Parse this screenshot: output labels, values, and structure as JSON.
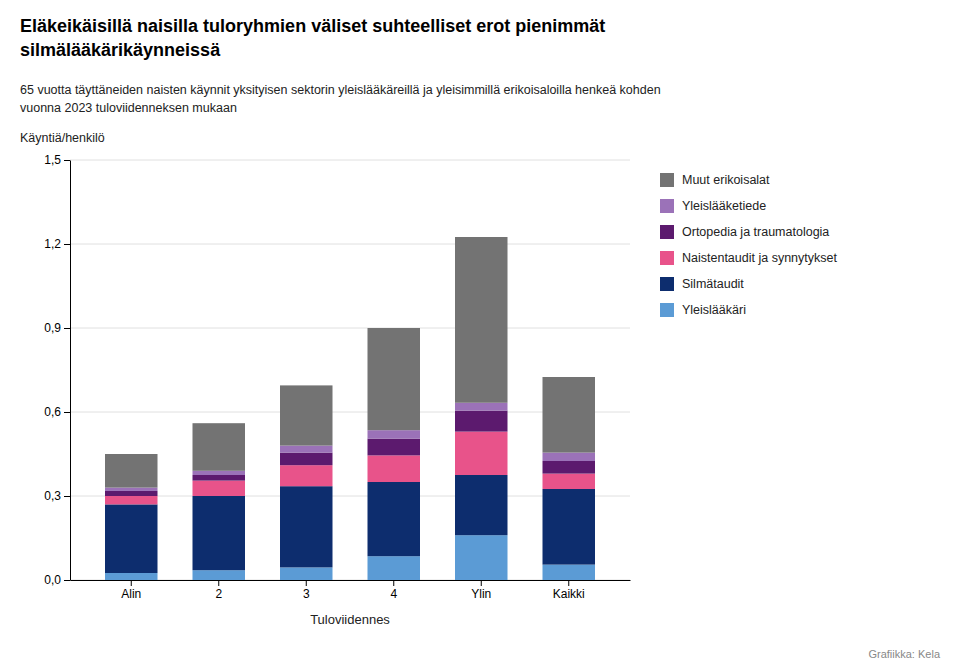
{
  "chart_data": {
    "type": "bar",
    "stacked": true,
    "title": "Eläkeikäisillä naisilla tuloryhmien väliset suhteelliset erot pienimmät\nsilmälääkärikäynneissä",
    "subtitle": "65 vuotta täyttäneiden naisten käynnit yksityisen sektorin yleislääkäreillä ja yleisimmillä erikoisaloilla henkeä kohden\nvuonna 2023 tuloviidenneksen mukaan",
    "footer": "Grafiikka: Kela",
    "xlabel": "Tuloviidennes",
    "ylabel": "Käyntiä/henkilö",
    "categories": [
      "Alin",
      "2",
      "3",
      "4",
      "Ylin",
      "Kaikki"
    ],
    "series": [
      {
        "name": "Yleislääkäri",
        "color": "#5b9bd5",
        "values": [
          0.025,
          0.035,
          0.045,
          0.085,
          0.16,
          0.055
        ]
      },
      {
        "name": "Silmätaudit",
        "color": "#0d2d6e",
        "values": [
          0.245,
          0.265,
          0.29,
          0.265,
          0.215,
          0.27
        ]
      },
      {
        "name": "Naistentaudit ja synnytykset",
        "color": "#e8538a",
        "values": [
          0.03,
          0.055,
          0.075,
          0.095,
          0.155,
          0.055
        ]
      },
      {
        "name": "Ortopedia ja traumatologia",
        "color": "#5c1a6e",
        "values": [
          0.018,
          0.02,
          0.045,
          0.06,
          0.075,
          0.045
        ]
      },
      {
        "name": "Yleislääketiede",
        "color": "#9b72b8",
        "values": [
          0.012,
          0.015,
          0.025,
          0.03,
          0.028,
          0.03
        ]
      },
      {
        "name": "Muut erikoisalat",
        "color": "#737373",
        "values": [
          0.12,
          0.17,
          0.215,
          0.365,
          0.592,
          0.27
        ]
      }
    ],
    "ylim": [
      0,
      1.5
    ],
    "yticks": [
      {
        "value": 0.0,
        "label": "0,0"
      },
      {
        "value": 0.3,
        "label": "0,3"
      },
      {
        "value": 0.6,
        "label": "0,6"
      },
      {
        "value": 0.9,
        "label": "0,9"
      },
      {
        "value": 1.2,
        "label": "1,2"
      },
      {
        "value": 1.5,
        "label": "1,5"
      }
    ],
    "grid": true,
    "legend": "right"
  }
}
